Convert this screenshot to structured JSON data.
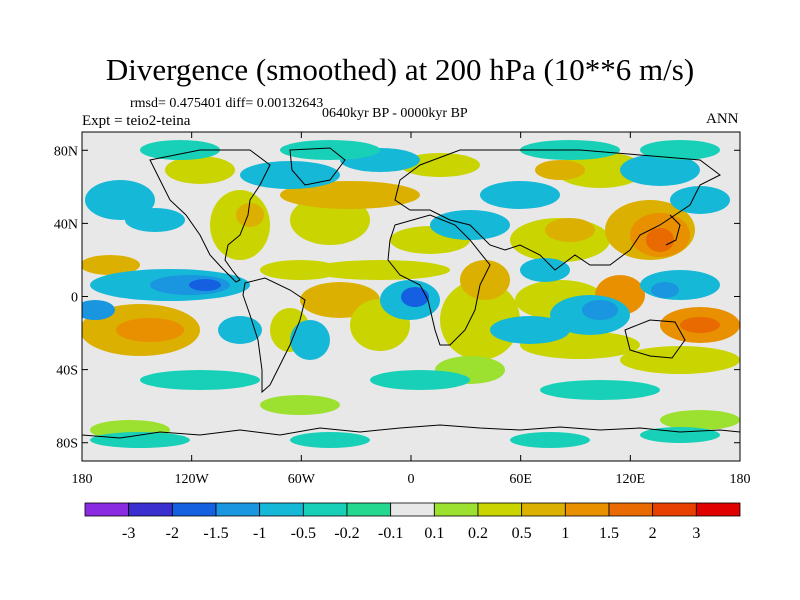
{
  "title": "Divergence (smoothed) at 200 hPa (10**6 m/s)",
  "stats": "rmsd= 0.475401  diff= 0.00132643",
  "experiment": "Expt = teio2-teina",
  "period": "0640kyr BP - 0000kyr BP",
  "season": "ANN",
  "axes": {
    "x_ticks": [
      "180",
      "120W",
      "60W",
      "0",
      "60E",
      "120E",
      "180"
    ],
    "y_ticks": [
      "80N",
      "40N",
      "0",
      "40S",
      "80S"
    ]
  },
  "colorbar": {
    "labels": [
      "-3",
      "-2",
      "-1.5",
      "-1",
      "-0.5",
      "-0.2",
      "-0.1",
      "0.1",
      "0.2",
      "0.5",
      "1",
      "1.5",
      "2",
      "3"
    ],
    "colors": [
      "#8a2be2",
      "#3b2fd0",
      "#1560e0",
      "#1a95e0",
      "#16b8d8",
      "#18d0b8",
      "#25d890",
      "#e8e8e8",
      "#9ce030",
      "#c9d400",
      "#dcb000",
      "#e89000",
      "#e86a00",
      "#e84000",
      "#e00000"
    ]
  }
}
